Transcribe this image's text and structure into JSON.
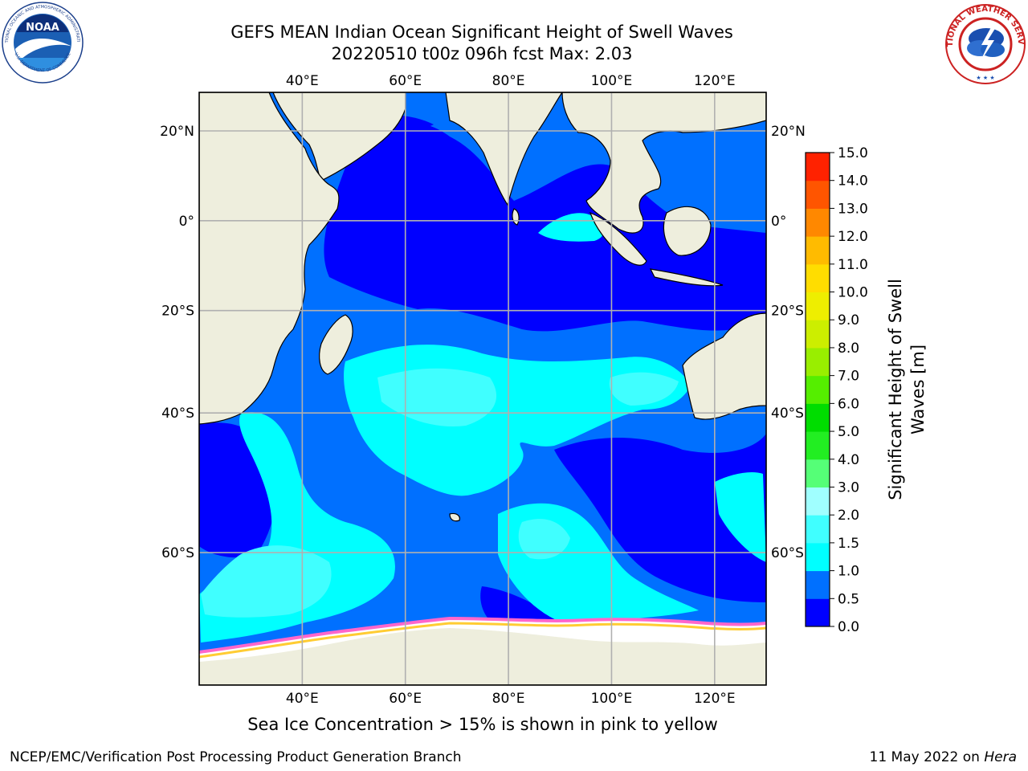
{
  "title": {
    "line1": "GEFS MEAN Indian Ocean Significant Height of Swell Waves",
    "line2": "20220510 t00z 096h fcst   Max: 2.03"
  },
  "logos": {
    "left": {
      "text": "NOAA",
      "ring_text": "NATIONAL OCEANIC AND ATMOSPHERIC ADMINISTRATION",
      "bottom_text": "U.S. DEPARTMENT OF COMMERCE"
    },
    "right": {
      "ring_text": "NATIONAL WEATHER SERVICE"
    }
  },
  "map": {
    "lon_range": [
      20,
      130
    ],
    "lat_range": [
      -72,
      28
    ],
    "lon_ticks": [
      40,
      60,
      80,
      100,
      120
    ],
    "lon_labels": [
      "40°E",
      "60°E",
      "80°E",
      "100°E",
      "120°E"
    ],
    "lat_ticks": [
      20,
      0,
      -20,
      -40,
      -60
    ],
    "lat_labels": [
      "20°N",
      "0°",
      "20°S",
      "40°S",
      "60°S"
    ],
    "grid": true,
    "colors": {
      "land": "#eeeedd",
      "sea_ice": "#ffffff",
      "ice_edge_pink": "#ff66cc",
      "ice_edge_yellow": "#ffcc33"
    }
  },
  "colorbar": {
    "title_line1": "Significant Height of Swell",
    "title_line2": "Waves [m]",
    "bounds": [
      0.0,
      0.5,
      1.0,
      1.5,
      2.0,
      3.0,
      4.0,
      5.0,
      6.0,
      7.0,
      8.0,
      9.0,
      10.0,
      11.0,
      12.0,
      13.0,
      14.0,
      15.0
    ],
    "labels": [
      "0.0",
      "0.5",
      "1.0",
      "1.5",
      "2.0",
      "3.0",
      "4.0",
      "5.0",
      "6.0",
      "7.0",
      "8.0",
      "9.0",
      "10.0",
      "11.0",
      "12.0",
      "13.0",
      "14.0",
      "15.0"
    ],
    "colors": [
      "#0000ff",
      "#0070ff",
      "#00ffff",
      "#40ffff",
      "#a0ffff",
      "#55ff77",
      "#22ee22",
      "#00dd00",
      "#55ee00",
      "#99ee00",
      "#ccee00",
      "#eeee00",
      "#ffdd00",
      "#ffbb00",
      "#ff8800",
      "#ff5500",
      "#ff2200"
    ]
  },
  "caption": "Sea Ice Concentration > 15% is shown in pink to yellow",
  "footer": {
    "left": "NCEP/EMC/Verification Post Processing Product Generation Branch",
    "right_prefix": "11 May 2022 on ",
    "right_host": "Hera"
  }
}
